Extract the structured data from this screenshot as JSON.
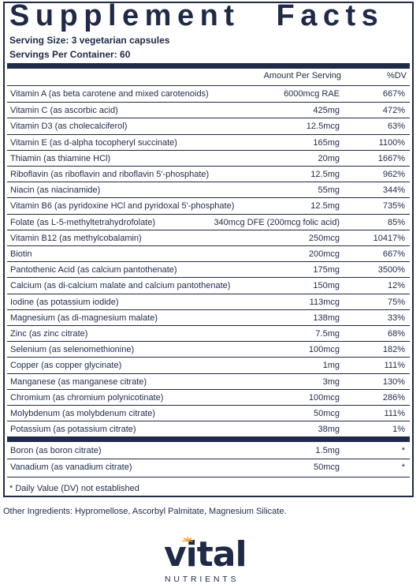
{
  "title": "Supplement Facts",
  "serving_size": "Serving Size: 3 vegetarian capsules",
  "servings_per_container": "Servings Per Container: 60",
  "header": {
    "amount": "Amount Per Serving",
    "dv": "%DV"
  },
  "rows": [
    {
      "name": "Vitamin A (as beta carotene and mixed carotenoids)",
      "amount": "6000mcg RAE",
      "dv": "667%"
    },
    {
      "name": "Vitamin C (as ascorbic acid)",
      "amount": "425mg",
      "dv": "472%"
    },
    {
      "name": "Vitamin D3 (as cholecalciferol)",
      "amount": "12.5mcg",
      "dv": "63%"
    },
    {
      "name": "Vitamin E (as d-alpha tocopheryl succinate)",
      "amount": "165mg",
      "dv": "1100%"
    },
    {
      "name": "Thiamin (as thiamine HCl)",
      "amount": "20mg",
      "dv": "1667%"
    },
    {
      "name": "Riboflavin (as riboflavin and riboflavin 5'-phosphate)",
      "amount": "12.5mg",
      "dv": "962%"
    },
    {
      "name": "Niacin (as niacinamide)",
      "amount": "55mg",
      "dv": "344%"
    },
    {
      "name": "Vitamin B6 (as pyridoxine HCl and pyridoxal 5'-phosphate)",
      "amount": "12.5mg",
      "dv": "735%"
    },
    {
      "name": "Folate (as L-5-methyltetrahydrofolate)",
      "amount": "340mcg DFE (200mcg folic acid)",
      "dv": "85%"
    },
    {
      "name": "Vitamin B12 (as methylcobalamin)",
      "amount": "250mcg",
      "dv": "10417%"
    },
    {
      "name": "Biotin",
      "amount": "200mcg",
      "dv": "667%"
    },
    {
      "name": "Pantothenic Acid (as calcium pantothenate)",
      "amount": "175mg",
      "dv": "3500%"
    },
    {
      "name": "Calcium (as di-calcium malate and calcium pantothenate)",
      "amount": "150mg",
      "dv": "12%"
    },
    {
      "name": "Iodine (as potassium iodide)",
      "amount": "113mcg",
      "dv": "75%"
    },
    {
      "name": "Magnesium (as di-magnesium malate)",
      "amount": "138mg",
      "dv": "33%"
    },
    {
      "name": "Zinc (as zinc citrate)",
      "amount": "7.5mg",
      "dv": "68%"
    },
    {
      "name": "Selenium (as selenomethionine)",
      "amount": "100mcg",
      "dv": "182%"
    },
    {
      "name": "Copper (as copper glycinate)",
      "amount": "1mg",
      "dv": "111%"
    },
    {
      "name": "Manganese (as manganese citrate)",
      "amount": "3mg",
      "dv": "130%"
    },
    {
      "name": "Chromium (as chromium polynicotinate)",
      "amount": "100mcg",
      "dv": "286%"
    },
    {
      "name": "Molybdenum (as molybdenum citrate)",
      "amount": "50mcg",
      "dv": "111%"
    },
    {
      "name": "Potassium (as potassium citrate)",
      "amount": "38mg",
      "dv": "1%"
    }
  ],
  "extra_rows": [
    {
      "name": "Boron (as boron citrate)",
      "amount": "1.5mg",
      "dv": "*"
    },
    {
      "name": "Vanadium (as vanadium citrate)",
      "amount": "50mcg",
      "dv": "*"
    }
  ],
  "footnote": "* Daily Value (DV) not established",
  "other_ingredients": "Other Ingredients: Hypromellose, Ascorbyl Palmitate, Magnesium Silicate.",
  "brand": {
    "name": "vital",
    "sub": "NUTRIENTS",
    "accent": "#f5a623"
  }
}
